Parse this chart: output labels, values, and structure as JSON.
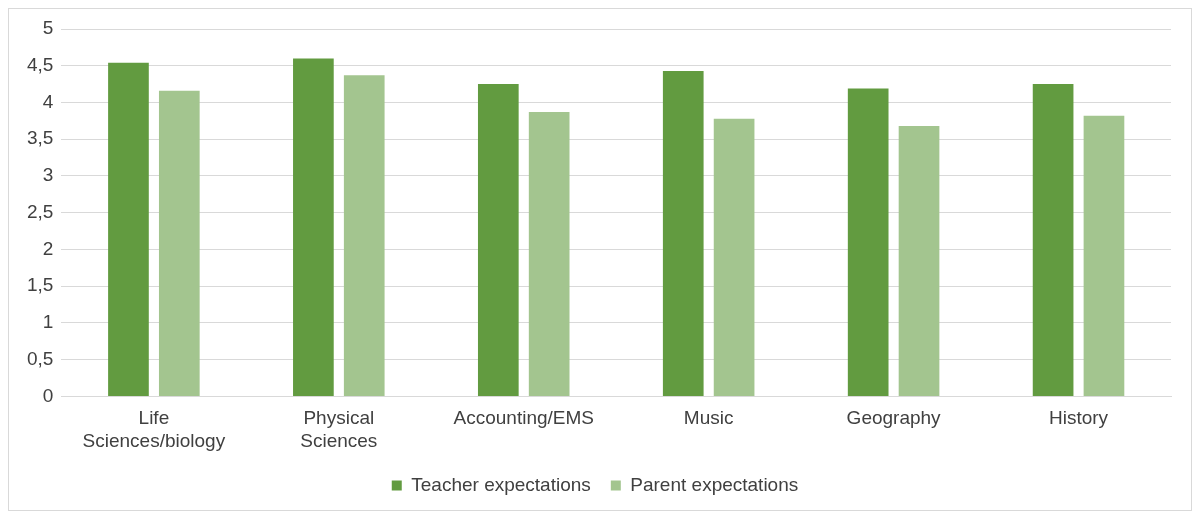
{
  "chart_data": {
    "type": "bar",
    "categories": [
      "Life Sciences/biology",
      "Physical Sciences",
      "Accounting/EMS",
      "Music",
      "Geography",
      "History"
    ],
    "series": [
      {
        "name": "Teacher expectations",
        "color": "#629b40",
        "values": [
          4.54,
          4.6,
          4.25,
          4.43,
          4.19,
          4.25
        ]
      },
      {
        "name": "Parent expectations",
        "color": "#a3c58f",
        "values": [
          4.16,
          4.37,
          3.87,
          3.78,
          3.68,
          3.82
        ]
      }
    ],
    "ylim": [
      0,
      5
    ],
    "yticks": [
      0,
      {
        "value": 0.5,
        "label": "0,5"
      },
      1,
      {
        "value": 1.5,
        "label": "1,5"
      },
      2,
      {
        "value": 2.5,
        "label": "2,5"
      },
      3,
      {
        "value": 3.5,
        "label": "3,5"
      },
      4,
      {
        "value": 4.5,
        "label": "4,5"
      },
      5
    ],
    "grid": "y",
    "legend": "bottom"
  }
}
